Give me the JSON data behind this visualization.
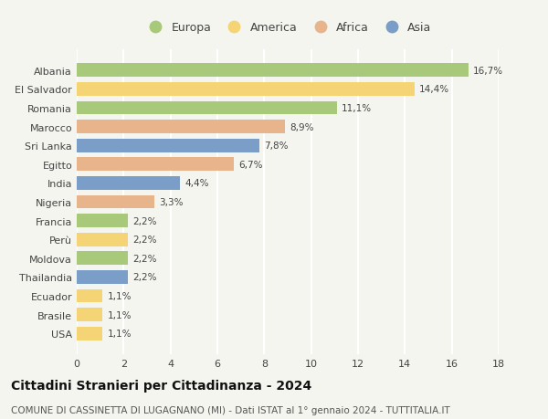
{
  "title": "Cittadini Stranieri per Cittadinanza - 2024",
  "subtitle": "COMUNE DI CASSINETTA DI LUGAGNANO (MI) - Dati ISTAT al 1° gennaio 2024 - TUTTITALIA.IT",
  "countries": [
    "Albania",
    "El Salvador",
    "Romania",
    "Marocco",
    "Sri Lanka",
    "Egitto",
    "India",
    "Nigeria",
    "Francia",
    "Perù",
    "Moldova",
    "Thailandia",
    "Ecuador",
    "Brasile",
    "USA"
  ],
  "values": [
    16.7,
    14.4,
    11.1,
    8.9,
    7.8,
    6.7,
    4.4,
    3.3,
    2.2,
    2.2,
    2.2,
    2.2,
    1.1,
    1.1,
    1.1
  ],
  "labels": [
    "16,7%",
    "14,4%",
    "11,1%",
    "8,9%",
    "7,8%",
    "6,7%",
    "4,4%",
    "3,3%",
    "2,2%",
    "2,2%",
    "2,2%",
    "2,2%",
    "1,1%",
    "1,1%",
    "1,1%"
  ],
  "continents": [
    "Europa",
    "America",
    "Europa",
    "Africa",
    "Asia",
    "Africa",
    "Asia",
    "Africa",
    "Europa",
    "America",
    "Europa",
    "Asia",
    "America",
    "America",
    "America"
  ],
  "colors": {
    "Europa": "#a8c87a",
    "America": "#f5d476",
    "Africa": "#e8b48c",
    "Asia": "#7b9ec8"
  },
  "legend_order": [
    "Europa",
    "America",
    "Africa",
    "Asia"
  ],
  "xlim": [
    0,
    18
  ],
  "xticks": [
    0,
    2,
    4,
    6,
    8,
    10,
    12,
    14,
    16,
    18
  ],
  "background_color": "#f5f5f0",
  "grid_color": "#ffffff",
  "bar_height": 0.72,
  "title_fontsize": 10,
  "subtitle_fontsize": 7.5,
  "label_fontsize": 7.5,
  "tick_fontsize": 8,
  "legend_fontsize": 9
}
